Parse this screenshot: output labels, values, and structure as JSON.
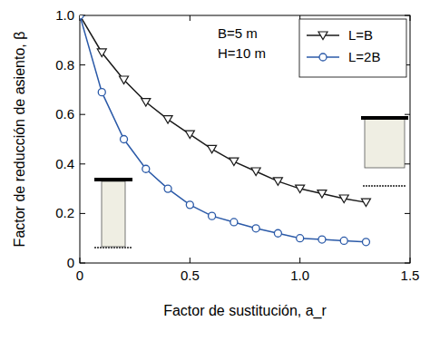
{
  "chart_data": {
    "type": "line",
    "xlabel": "Factor de sustitución, a_r",
    "ylabel": "Factor de reducción de asiento, β",
    "annotations": [
      "B=5 m",
      "H=10 m"
    ],
    "x": [
      0,
      0.1,
      0.2,
      0.3,
      0.4,
      0.5,
      0.6,
      0.7,
      0.8,
      0.9,
      1.0,
      1.1,
      1.2,
      1.3
    ],
    "series": [
      {
        "name": "L=B",
        "color": "#1a1a1a",
        "marker": "triangle-down",
        "line_style": "solid",
        "values": [
          1.0,
          0.85,
          0.74,
          0.65,
          0.58,
          0.52,
          0.46,
          0.41,
          0.37,
          0.33,
          0.3,
          0.28,
          0.26,
          0.245
        ]
      },
      {
        "name": "L=2B",
        "color": "#2b5aa8",
        "marker": "circle",
        "line_style": "solid",
        "values": [
          1.0,
          0.69,
          0.5,
          0.38,
          0.3,
          0.235,
          0.19,
          0.165,
          0.14,
          0.12,
          0.1,
          0.095,
          0.09,
          0.085
        ]
      }
    ],
    "xlim": [
      0,
      1.5
    ],
    "xticks": [
      0,
      0.5,
      {
        "value": 1,
        "label": "1.0"
      },
      1.5
    ],
    "ylim": [
      0,
      1
    ],
    "yticks": [
      0,
      0.2,
      0.4,
      0.6,
      0.8,
      {
        "value": 1,
        "label": "1.0"
      }
    ],
    "grid": false,
    "legend": "upper-right"
  }
}
